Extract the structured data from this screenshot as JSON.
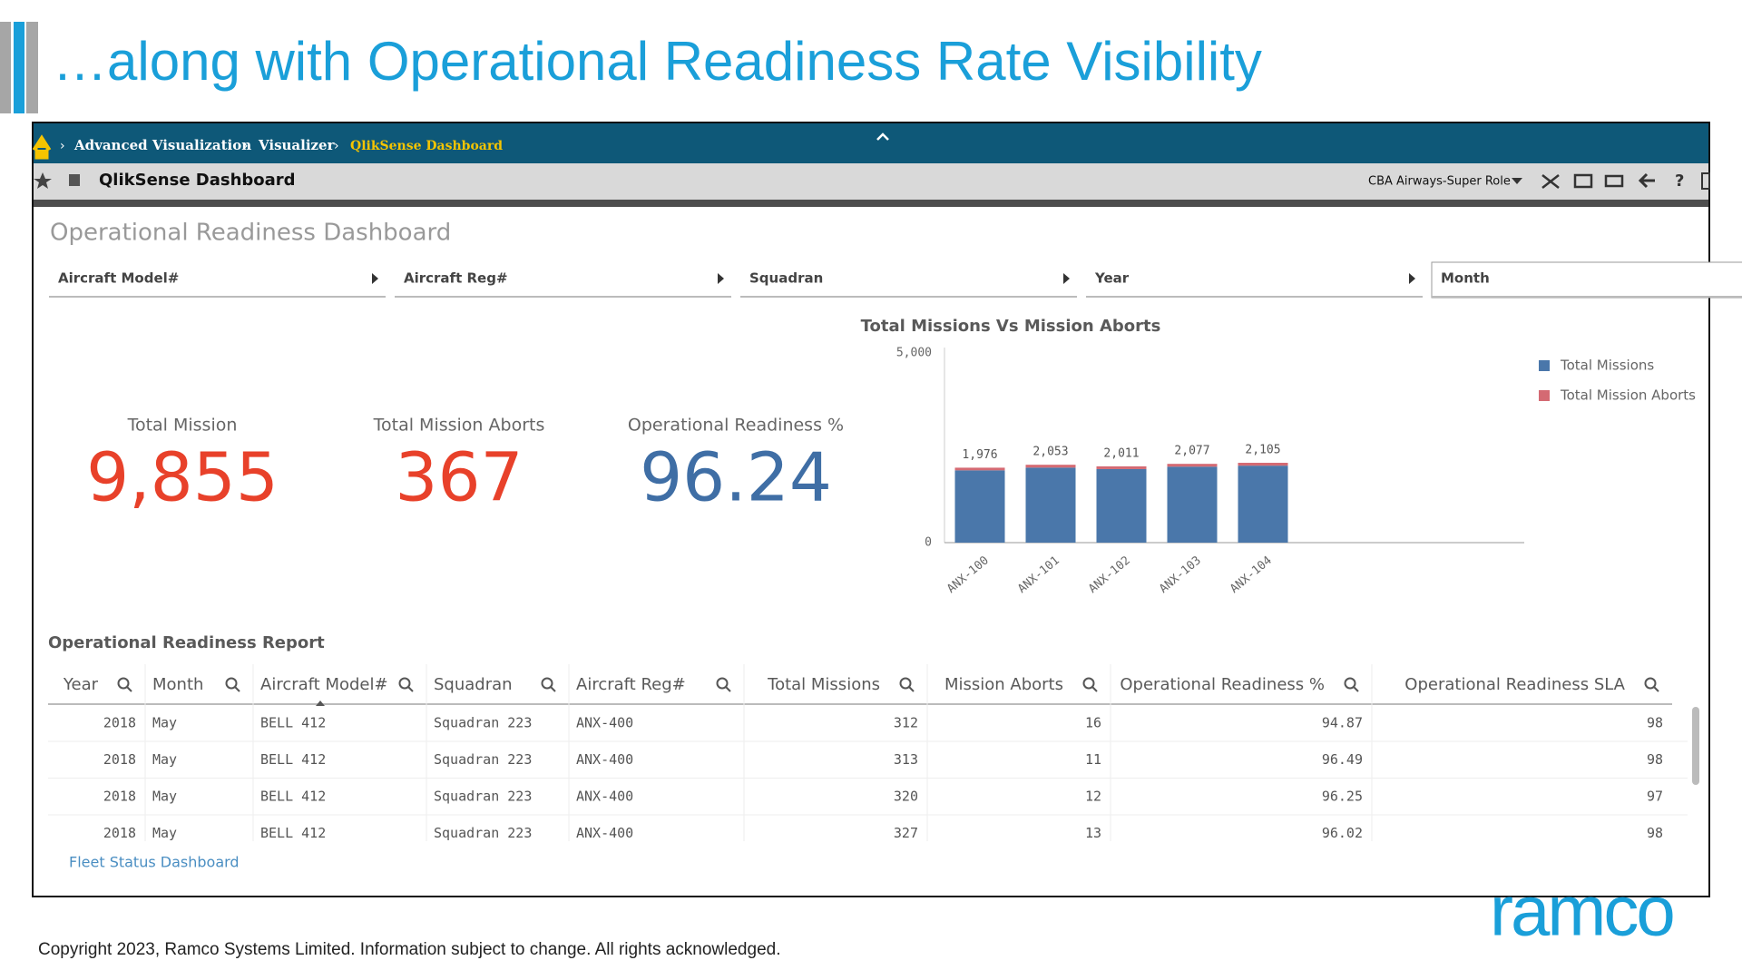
{
  "header": {
    "title": "…along with Operational Readiness Rate Visibility"
  },
  "breadcrumb": [
    "Advanced Visualization",
    "Visualizer",
    "QlikSense Dashboard"
  ],
  "toolbar": {
    "title": "QlikSense Dashboard",
    "role": "CBA Airways-Super Role"
  },
  "dashboard": {
    "title": "Operational Readiness Dashboard",
    "filters": [
      "Aircraft Model#",
      "Aircraft Reg#",
      "Squadran",
      "Year",
      "Month"
    ]
  },
  "kpis": [
    {
      "label": "Total Mission",
      "value": 9855,
      "value_label": "9,855",
      "color": "#e8412a"
    },
    {
      "label": "Total Mission Aborts",
      "value": 367,
      "color": "#e8412a"
    },
    {
      "label": "Operational Readiness %",
      "value": 96.24,
      "color": "#3f6ea5"
    }
  ],
  "chart_data": {
    "type": "bar",
    "stacked": true,
    "title": "Total Missions Vs Mission Aborts",
    "categories": [
      "ANX-100",
      "ANX-101",
      "ANX-102",
      "ANX-103",
      "ANX-104"
    ],
    "series": [
      {
        "name": "Total Missions",
        "color": "#4a77aa",
        "values": [
          1906,
          1978,
          1939,
          2003,
          2029
        ]
      },
      {
        "name": "Total Mission Aborts",
        "color": "#d46a73",
        "values": [
          70,
          75,
          72,
          74,
          76
        ]
      }
    ],
    "totals": [
      1976,
      2053,
      2011,
      2077,
      2105
    ],
    "total_labels": [
      "1,976",
      "2,053",
      "2,011",
      "2,077",
      "2,105"
    ],
    "ylim": [
      0,
      5000
    ],
    "yticks": [
      0,
      {
        "value": 5000,
        "label": "5,000"
      }
    ],
    "legend": "top-right"
  },
  "table": {
    "title": "Operational Readiness Report",
    "columns": [
      "Year",
      "Month",
      "Aircraft Model#",
      "Squadran",
      "Aircraft Reg#",
      "Total Missions",
      "Mission Aborts",
      "Operational Readiness %",
      "Operational Readiness SLA"
    ],
    "rows": [
      [
        2018,
        "May",
        "BELL 412",
        "Squadran 223",
        "ANX-400",
        312,
        16,
        94.87,
        98
      ],
      [
        2018,
        "May",
        "BELL 412",
        "Squadran 223",
        "ANX-400",
        313,
        11,
        96.49,
        98
      ],
      [
        2018,
        "May",
        "BELL 412",
        "Squadran 223",
        "ANX-400",
        320,
        12,
        96.25,
        97
      ],
      [
        2018,
        "May",
        "BELL 412",
        "Squadran 223",
        "ANX-400",
        327,
        13,
        96.02,
        98
      ]
    ]
  },
  "link": "Fleet Status Dashboard",
  "logo": "ramco",
  "footer": "Copyright 2023, Ramco Systems Limited. Information subject to change. All rights acknowledged."
}
